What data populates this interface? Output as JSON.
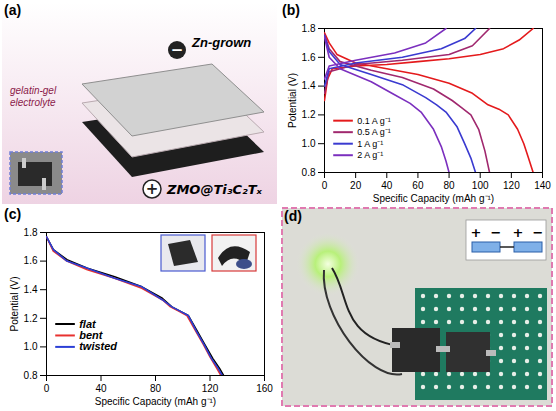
{
  "panel_a": {
    "panel_label": "(a)",
    "labels": {
      "anode": "Zn-grown",
      "electrolyte": "gelatin-gel electrolyte",
      "cathode": "ZMO@Ti₃C₂Tₓ",
      "anode_sign": "−",
      "cathode_sign": "+"
    }
  },
  "chart_data": [
    {
      "type": "line",
      "panel_label": "(b)",
      "x_label": "Specific Capacity (mAh g⁻¹)",
      "y_label": "Potential (V)",
      "xlim": [
        0,
        140
      ],
      "xticks": [
        0,
        20,
        40,
        60,
        80,
        100,
        120,
        140
      ],
      "ylim": [
        0.8,
        1.8
      ],
      "yticks": [
        0.8,
        {
          "value": 1.0,
          "label": "1.0"
        },
        1.2,
        1.4,
        1.6,
        1.8
      ],
      "legend": "lower left",
      "series": [
        {
          "name": "0.1 A g⁻¹",
          "color": "#e41a1c",
          "x": [
            0,
            3,
            8,
            20,
            40,
            60,
            80,
            95,
            105,
            112,
            118,
            124,
            128,
            131,
            134,
            null,
            0,
            2,
            5,
            20,
            40,
            60,
            80,
            100,
            115,
            125,
            134
          ],
          "values": [
            1.77,
            1.7,
            1.62,
            1.56,
            1.52,
            1.48,
            1.42,
            1.35,
            1.27,
            1.24,
            1.2,
            1.1,
            1.0,
            0.9,
            0.8,
            null,
            1.3,
            1.45,
            1.52,
            1.54,
            1.55,
            1.57,
            1.59,
            1.62,
            1.66,
            1.72,
            1.8
          ]
        },
        {
          "name": "0.5 A g⁻¹",
          "color": "#a0286e",
          "x": [
            0,
            3,
            10,
            30,
            50,
            70,
            82,
            88,
            94,
            99,
            103,
            106,
            null,
            0,
            3,
            20,
            50,
            80,
            95,
            106
          ],
          "values": [
            1.76,
            1.66,
            1.57,
            1.51,
            1.46,
            1.38,
            1.3,
            1.25,
            1.2,
            1.1,
            0.95,
            0.8,
            null,
            1.35,
            1.5,
            1.55,
            1.58,
            1.62,
            1.68,
            1.8
          ]
        },
        {
          "name": "1 A g⁻¹",
          "color": "#3a3ad0",
          "x": [
            0,
            3,
            10,
            30,
            50,
            65,
            72,
            78,
            85,
            90,
            94,
            97,
            null,
            0,
            3,
            20,
            50,
            75,
            90,
            97
          ],
          "values": [
            1.75,
            1.64,
            1.55,
            1.48,
            1.41,
            1.32,
            1.27,
            1.22,
            1.12,
            1.0,
            0.9,
            0.8,
            null,
            1.4,
            1.52,
            1.56,
            1.6,
            1.66,
            1.73,
            1.8
          ]
        },
        {
          "name": "2 A g⁻¹",
          "color": "#7b2fbe",
          "x": [
            0,
            3,
            10,
            30,
            45,
            55,
            62,
            70,
            75,
            78,
            80,
            null,
            0,
            3,
            20,
            45,
            65,
            78
          ],
          "values": [
            1.74,
            1.6,
            1.52,
            1.43,
            1.34,
            1.28,
            1.22,
            1.1,
            0.98,
            0.88,
            0.8,
            null,
            1.45,
            1.54,
            1.58,
            1.63,
            1.7,
            1.8
          ]
        }
      ]
    },
    {
      "type": "line",
      "panel_label": "(c)",
      "x_label": "Specific Capacity (mAh g⁻¹)",
      "y_label": "Potential (V)",
      "xlim": [
        0,
        160
      ],
      "xticks": [
        0,
        40,
        80,
        120,
        160
      ],
      "ylim": [
        0.8,
        1.8
      ],
      "yticks": [
        0.8,
        {
          "value": 1.0,
          "label": "1.0"
        },
        1.2,
        1.4,
        1.6,
        1.8
      ],
      "legend": "lower left",
      "series": [
        {
          "name": "flat",
          "color": "#000000",
          "x": [
            0,
            5,
            15,
            30,
            50,
            70,
            85,
            92,
            98,
            104,
            110,
            116,
            122,
            127,
            130
          ],
          "values": [
            1.77,
            1.68,
            1.61,
            1.55,
            1.49,
            1.42,
            1.34,
            1.28,
            1.25,
            1.22,
            1.12,
            1.02,
            0.92,
            0.85,
            0.8
          ]
        },
        {
          "name": "bent",
          "color": "#e8312f",
          "x": [
            0,
            5,
            15,
            30,
            50,
            70,
            85,
            91,
            97,
            103,
            109,
            115,
            120,
            125,
            128
          ],
          "values": [
            1.77,
            1.67,
            1.6,
            1.54,
            1.48,
            1.41,
            1.33,
            1.28,
            1.25,
            1.22,
            1.12,
            1.02,
            0.93,
            0.85,
            0.8
          ]
        },
        {
          "name": "twisted",
          "color": "#2b3fd6",
          "x": [
            0,
            5,
            15,
            30,
            50,
            70,
            85,
            92,
            98,
            104,
            110,
            116,
            121,
            126,
            129
          ],
          "values": [
            1.77,
            1.68,
            1.6,
            1.55,
            1.48,
            1.42,
            1.33,
            1.28,
            1.25,
            1.22,
            1.11,
            1.01,
            0.92,
            0.85,
            0.8
          ]
        }
      ]
    }
  ],
  "panel_d": {
    "panel_label": "(d)",
    "inset_labels": [
      "+",
      "−",
      "+",
      "−"
    ]
  }
}
